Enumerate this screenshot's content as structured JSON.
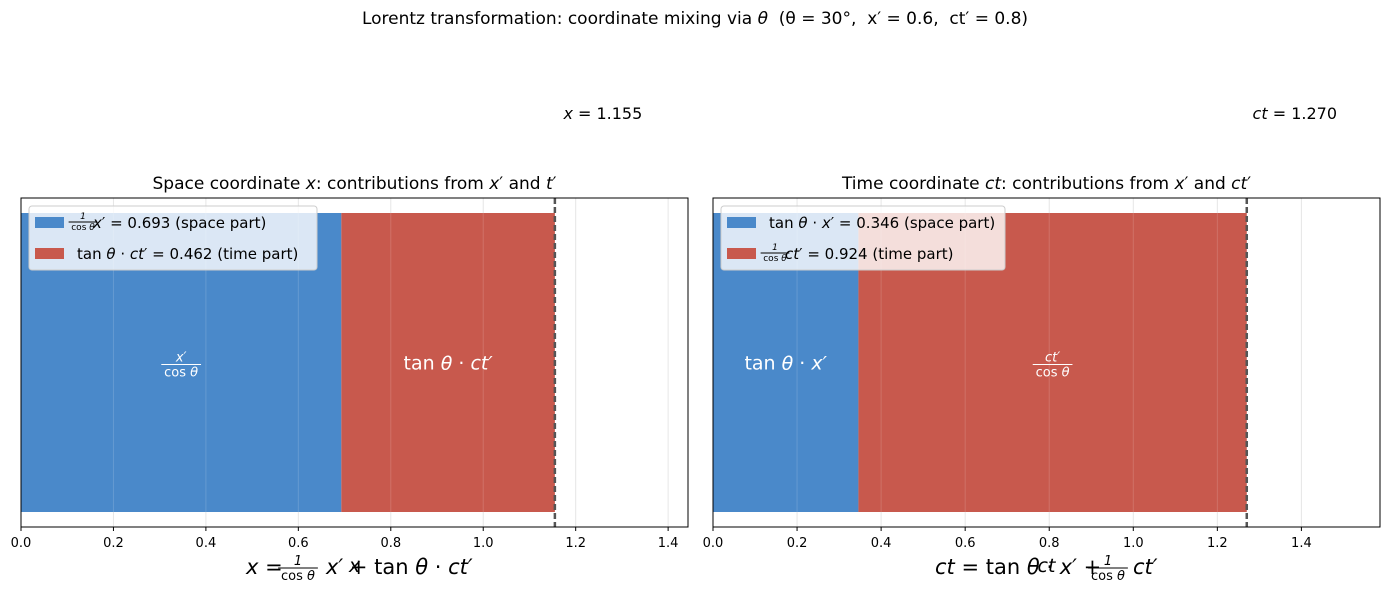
{
  "suptitle": {
    "prefix": "Lorentz transformation: coordinate mixing via ",
    "theta_sym": "θ",
    "params": "  (θ = 30°,  x′ = 0.6,  ct′ = 0.8)"
  },
  "colors": {
    "space": "#4a89ca",
    "time": "#c8594d",
    "total_line": "#555555",
    "grid": "#e6e6e6"
  },
  "chart_data": [
    {
      "type": "bar",
      "orientation": "horizontal-stacked",
      "title": "Space coordinate x: contributions from x′ and t′",
      "xlim": [
        0,
        1.443
      ],
      "xticks": [
        "0.0",
        "0.2",
        "0.4",
        "0.6",
        "0.8",
        "1.0",
        "1.2",
        "1.4"
      ],
      "grid": "x",
      "legend": "upper-left",
      "xlabel": "x",
      "total": {
        "value": 1.155,
        "label": "x = 1.155"
      },
      "series": [
        {
          "name": "1/cosθ x′ = 0.693  (space part)",
          "value": 0.693,
          "color": "#4a89ca",
          "bar_label": "x′/cosθ"
        },
        {
          "name": "tanθ · ct′ = 0.462  (time part)",
          "value": 0.462,
          "color": "#c8594d",
          "bar_label": "tanθ · ct′"
        }
      ],
      "equation": "x = (1/cosθ) x′ + tanθ · ct′"
    },
    {
      "type": "bar",
      "orientation": "horizontal-stacked",
      "title": "Time coordinate ct: contributions from x′ and ct′",
      "xlim": [
        0,
        1.587
      ],
      "xticks": [
        "0.0",
        "0.2",
        "0.4",
        "0.6",
        "0.8",
        "1.0",
        "1.2",
        "1.4"
      ],
      "grid": "x",
      "legend": "upper-left",
      "xlabel": "ct",
      "total": {
        "value": 1.27,
        "label": "ct = 1.270"
      },
      "series": [
        {
          "name": "tanθ · x′ = 0.346  (space part)",
          "value": 0.346,
          "color": "#4a89ca",
          "bar_label": "tanθ · x′"
        },
        {
          "name": "1/cosθ ct′ = 0.924  (time part)",
          "value": 0.924,
          "color": "#c8594d",
          "bar_label": "ct′/cosθ"
        }
      ],
      "equation": "ct = tanθ · x′ + (1/cosθ) ct′"
    }
  ]
}
